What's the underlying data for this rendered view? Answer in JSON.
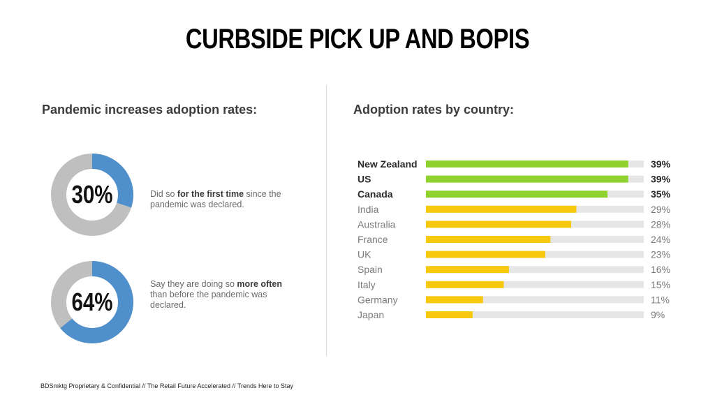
{
  "title": "CURBSIDE PICK UP AND BOPIS",
  "left_section": {
    "title": "Pandemic increases adoption rates:",
    "stats": [
      {
        "value_label": "30%",
        "value": 30,
        "text_pre": "Did so ",
        "text_bold": "for the first time",
        "text_post": " since the pandemic was declared."
      },
      {
        "value_label": "64%",
        "value": 64,
        "text_pre": "Say they are doing so ",
        "text_bold": "more often",
        "text_post": " than before the pandemic was declared."
      }
    ]
  },
  "right_section": {
    "title": "Adoption rates by country:"
  },
  "colors": {
    "donut_fill": "#4f8fcb",
    "donut_rest": "#bfbfbf",
    "highlight_bar": "#8fd12e",
    "normal_bar": "#f6c90e",
    "track": "#e6e6e6"
  },
  "chart_data": {
    "type": "bar",
    "orientation": "horizontal",
    "categories": [
      "New Zealand",
      "US",
      "Canada",
      "India",
      "Australia",
      "France",
      "UK",
      "Spain",
      "Italy",
      "Germany",
      "Japan"
    ],
    "values": [
      39,
      39,
      35,
      29,
      28,
      24,
      23,
      16,
      15,
      11,
      9
    ],
    "value_labels": [
      "39%",
      "39%",
      "35%",
      "29%",
      "28%",
      "24%",
      "23%",
      "16%",
      "15%",
      "11%",
      "9%"
    ],
    "highlighted": [
      true,
      true,
      true,
      false,
      false,
      false,
      false,
      false,
      false,
      false,
      false
    ],
    "xlim": [
      0,
      42
    ],
    "grid": false
  },
  "footer": "BDSmktg Proprietary & Confidential // The Retail Future Accelerated  // Trends Here to Stay"
}
